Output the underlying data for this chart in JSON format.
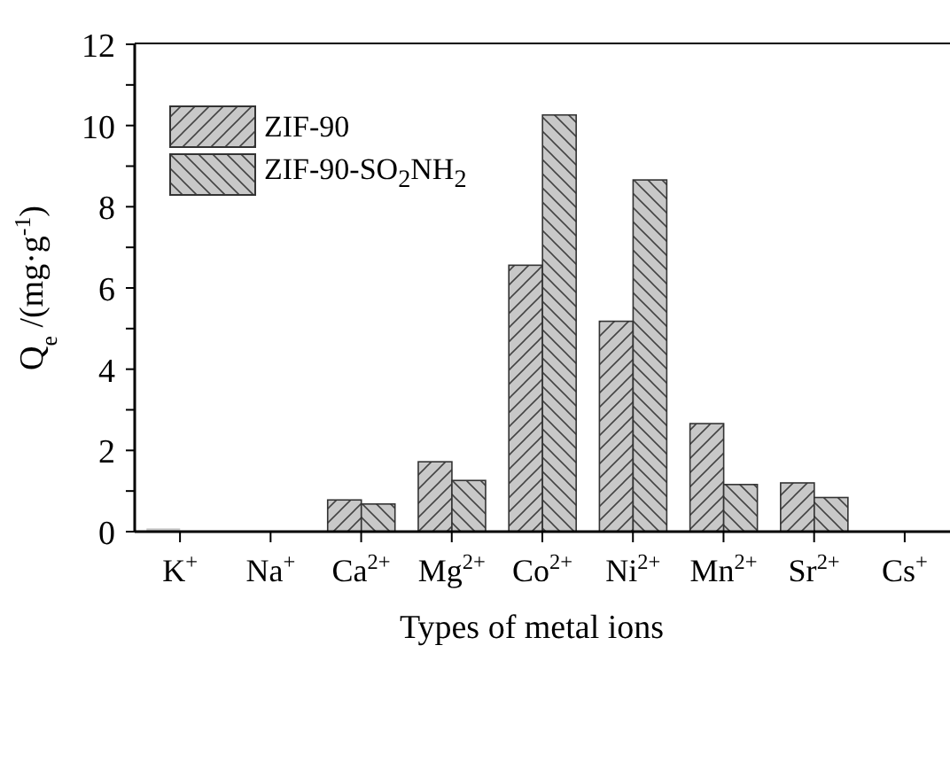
{
  "chart_data": {
    "type": "bar",
    "xlabel": "Types of metal ions",
    "ylabel": "Q$_{e}$ /(mg·g$^{-1}$)",
    "categories": [
      "K$^{+}$",
      "Na$^{+}$",
      "Ca$^{2+}$",
      "Mg$^{2+}$",
      "Co$^{2+}$",
      "Ni$^{2+}$",
      "Mn$^{2+}$",
      "Sr$^{2+}$",
      "Cs$^{+}$"
    ],
    "series": [
      {
        "name": "ZIF-90",
        "color": "#c8c8c8",
        "values": [
          0.08,
          null,
          0.78,
          1.72,
          6.56,
          5.18,
          2.66,
          1.2,
          null
        ]
      },
      {
        "name": "ZIF-90-SO$_{2}$NH$_{2}$",
        "color": "#c8c8c8",
        "values": [
          null,
          null,
          0.68,
          1.26,
          10.26,
          8.66,
          1.16,
          0.84,
          null
        ]
      }
    ],
    "ylim": [
      0,
      12
    ],
    "yticks": [
      0,
      {
        "value": 1,
        "label": null
      },
      2,
      {
        "value": 3,
        "label": null
      },
      4,
      {
        "value": 5,
        "label": null
      },
      6,
      {
        "value": 7,
        "label": null
      },
      8,
      {
        "value": 9,
        "label": null
      },
      10,
      {
        "value": 11,
        "label": null
      },
      12
    ],
    "grid": false,
    "legend": "top left"
  }
}
